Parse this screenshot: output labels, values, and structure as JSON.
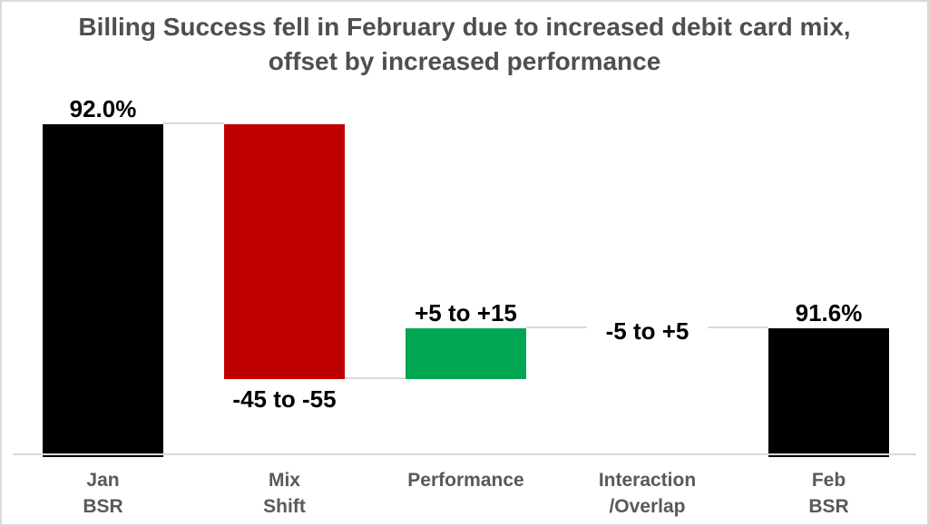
{
  "title": {
    "line1": "Billing Success fell in February due to increased debit card mix,",
    "line2": "offset by increased performance"
  },
  "chart_data": {
    "type": "waterfall",
    "title": "Billing Success fell in February due to increased debit card mix, offset by increased performance",
    "xlabel": "",
    "ylabel": "",
    "legend": false,
    "gridlines": false,
    "y_axis_visible": false,
    "start_value_pct": 92.0,
    "end_value_pct": 91.6,
    "bars": [
      {
        "category_lines": [
          "Jan",
          "BSR"
        ],
        "kind": "total",
        "value_pct": 92.0,
        "value_label": "92.0%",
        "label_position": "above",
        "color": "#000000"
      },
      {
        "category_lines": [
          "Mix",
          "Shift"
        ],
        "kind": "decrease",
        "range_bps": "-45 to -55",
        "delta_pp_midpoint": -0.5,
        "value_label": "-45 to -55",
        "label_position": "below",
        "color": "#C00000"
      },
      {
        "category_lines": [
          "Performance"
        ],
        "kind": "increase",
        "range_bps": "+5 to +15",
        "delta_pp_midpoint": 0.1,
        "value_label": "+5 to +15",
        "label_position": "above",
        "color": "#00A651"
      },
      {
        "category_lines": [
          "Interaction",
          "/Overlap"
        ],
        "kind": "zero",
        "range_bps": "-5 to +5",
        "delta_pp_midpoint": 0,
        "value_label": "-5 to +5",
        "label_position": "on-line",
        "color": "none"
      },
      {
        "category_lines": [
          "Feb",
          "BSR"
        ],
        "kind": "total",
        "value_pct": 91.6,
        "value_label": "91.6%",
        "label_position": "above",
        "color": "#000000"
      }
    ],
    "colors": {
      "total": "#000000",
      "decrease": "#C00000",
      "increase": "#00A651",
      "connector": "#D9D9D9",
      "baseline": "#D9D9D9",
      "value_label": "#000000",
      "category_label": "#595959",
      "title": "#4F4F4F"
    }
  }
}
